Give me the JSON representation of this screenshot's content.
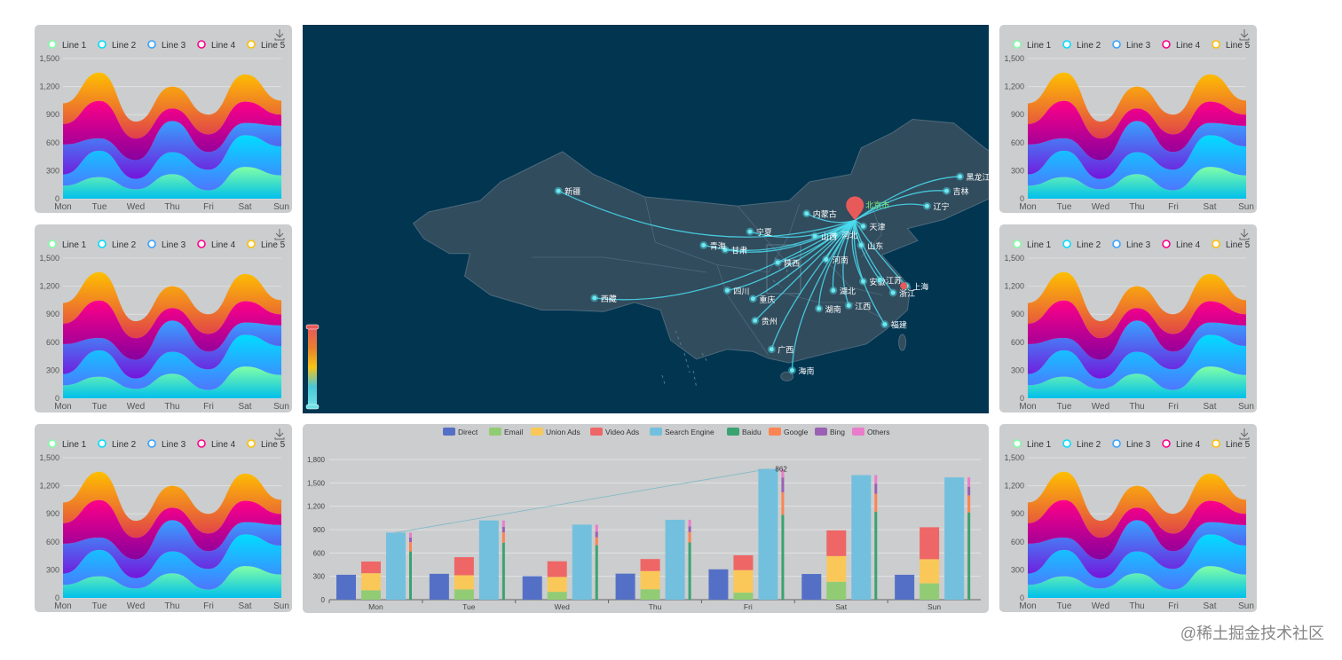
{
  "area_chart": {
    "legend": [
      "Line 1",
      "Line 2",
      "Line 3",
      "Line 4",
      "Line 5"
    ],
    "legend_colors": [
      "#80FFA5",
      "#00DDFF",
      "#37A2FF",
      "#FF0087",
      "#FFBF00"
    ],
    "categories": [
      "Mon",
      "Tue",
      "Wed",
      "Thu",
      "Fri",
      "Sat",
      "Sun"
    ],
    "y_ticks": [
      "0",
      "300",
      "600",
      "900",
      "1,200",
      "1,500"
    ],
    "ylim": [
      0,
      1500
    ]
  },
  "chart_data": [
    {
      "type": "area",
      "stacked": true,
      "title": "",
      "categories": [
        "Mon",
        "Tue",
        "Wed",
        "Thu",
        "Fri",
        "Sat",
        "Sun"
      ],
      "ylim": [
        0,
        1500
      ],
      "series": [
        {
          "name": "Line 1",
          "values": [
            140,
            232,
            101,
            264,
            90,
            340,
            250
          ]
        },
        {
          "name": "Line 2",
          "values": [
            120,
            282,
            111,
            234,
            220,
            340,
            310
          ]
        },
        {
          "name": "Line 3",
          "values": [
            320,
            132,
            201,
            334,
            190,
            130,
            220
          ]
        },
        {
          "name": "Line 4",
          "values": [
            220,
            402,
            231,
            134,
            190,
            230,
            120
          ]
        },
        {
          "name": "Line 5",
          "values": [
            220,
            302,
            181,
            234,
            210,
            290,
            150
          ]
        }
      ]
    },
    {
      "type": "area",
      "stacked": true,
      "title": "",
      "categories": [
        "Mon",
        "Tue",
        "Wed",
        "Thu",
        "Fri",
        "Sat",
        "Sun"
      ],
      "ylim": [
        0,
        1500
      ],
      "series": [
        {
          "name": "Line 1",
          "values": [
            140,
            232,
            101,
            264,
            90,
            340,
            250
          ]
        },
        {
          "name": "Line 2",
          "values": [
            120,
            282,
            111,
            234,
            220,
            340,
            310
          ]
        },
        {
          "name": "Line 3",
          "values": [
            320,
            132,
            201,
            334,
            190,
            130,
            220
          ]
        },
        {
          "name": "Line 4",
          "values": [
            220,
            402,
            231,
            134,
            190,
            230,
            120
          ]
        },
        {
          "name": "Line 5",
          "values": [
            220,
            302,
            181,
            234,
            210,
            290,
            150
          ]
        }
      ]
    },
    {
      "type": "area",
      "stacked": true,
      "title": "",
      "categories": [
        "Mon",
        "Tue",
        "Wed",
        "Thu",
        "Fri",
        "Sat",
        "Sun"
      ],
      "ylim": [
        0,
        1500
      ],
      "series": [
        {
          "name": "Line 1",
          "values": [
            140,
            232,
            101,
            264,
            90,
            340,
            250
          ]
        },
        {
          "name": "Line 2",
          "values": [
            120,
            282,
            111,
            234,
            220,
            340,
            310
          ]
        },
        {
          "name": "Line 3",
          "values": [
            320,
            132,
            201,
            334,
            190,
            130,
            220
          ]
        },
        {
          "name": "Line 4",
          "values": [
            220,
            402,
            231,
            134,
            190,
            230,
            120
          ]
        },
        {
          "name": "Line 5",
          "values": [
            220,
            302,
            181,
            234,
            210,
            290,
            150
          ]
        }
      ]
    },
    {
      "type": "area",
      "stacked": true,
      "title": "",
      "categories": [
        "Mon",
        "Tue",
        "Wed",
        "Thu",
        "Fri",
        "Sat",
        "Sun"
      ],
      "ylim": [
        0,
        1500
      ],
      "series": [
        {
          "name": "Line 1",
          "values": [
            140,
            232,
            101,
            264,
            90,
            340,
            250
          ]
        },
        {
          "name": "Line 2",
          "values": [
            120,
            282,
            111,
            234,
            220,
            340,
            310
          ]
        },
        {
          "name": "Line 3",
          "values": [
            320,
            132,
            201,
            334,
            190,
            130,
            220
          ]
        },
        {
          "name": "Line 4",
          "values": [
            220,
            402,
            231,
            134,
            190,
            230,
            120
          ]
        },
        {
          "name": "Line 5",
          "values": [
            220,
            302,
            181,
            234,
            210,
            290,
            150
          ]
        }
      ]
    },
    {
      "type": "area",
      "stacked": true,
      "title": "",
      "categories": [
        "Mon",
        "Tue",
        "Wed",
        "Thu",
        "Fri",
        "Sat",
        "Sun"
      ],
      "ylim": [
        0,
        1500
      ],
      "series": [
        {
          "name": "Line 1",
          "values": [
            140,
            232,
            101,
            264,
            90,
            340,
            250
          ]
        },
        {
          "name": "Line 2",
          "values": [
            120,
            282,
            111,
            234,
            220,
            340,
            310
          ]
        },
        {
          "name": "Line 3",
          "values": [
            320,
            132,
            201,
            334,
            190,
            130,
            220
          ]
        },
        {
          "name": "Line 4",
          "values": [
            220,
            402,
            231,
            134,
            190,
            230,
            120
          ]
        },
        {
          "name": "Line 5",
          "values": [
            220,
            302,
            181,
            234,
            210,
            290,
            150
          ]
        }
      ]
    },
    {
      "type": "area",
      "stacked": true,
      "title": "",
      "categories": [
        "Mon",
        "Tue",
        "Wed",
        "Thu",
        "Fri",
        "Sat",
        "Sun"
      ],
      "ylim": [
        0,
        1500
      ],
      "series": [
        {
          "name": "Line 1",
          "values": [
            140,
            232,
            101,
            264,
            90,
            340,
            250
          ]
        },
        {
          "name": "Line 2",
          "values": [
            120,
            282,
            111,
            234,
            220,
            340,
            310
          ]
        },
        {
          "name": "Line 3",
          "values": [
            320,
            132,
            201,
            334,
            190,
            130,
            220
          ]
        },
        {
          "name": "Line 4",
          "values": [
            220,
            402,
            231,
            134,
            190,
            230,
            120
          ]
        },
        {
          "name": "Line 5",
          "values": [
            220,
            302,
            181,
            234,
            210,
            290,
            150
          ]
        }
      ]
    },
    {
      "type": "bar",
      "title": "",
      "categories": [
        "Mon",
        "Tue",
        "Wed",
        "Thu",
        "Fri",
        "Sat",
        "Sun"
      ],
      "ylim": [
        0,
        1800
      ],
      "y_ticks": [
        "0",
        "300",
        "600",
        "900",
        "1,200",
        "1,500",
        "1,800"
      ],
      "legend": [
        "Direct",
        "Email",
        "Union Ads",
        "Video Ads",
        "Search Engine",
        "Baidu",
        "Google",
        "Bing",
        "Others"
      ],
      "colors": {
        "Direct": "#5470c6",
        "Email": "#91cc75",
        "Union Ads": "#fac858",
        "Video Ads": "#ee6666",
        "Search Engine": "#73c0de",
        "Baidu": "#3ba272",
        "Google": "#fc8452",
        "Bing": "#9a60b4",
        "Others": "#ea7ccc"
      },
      "series": [
        {
          "name": "Direct",
          "values": [
            320,
            332,
            301,
            334,
            390,
            330,
            320
          ]
        },
        {
          "name": "Email",
          "values": [
            120,
            132,
            101,
            134,
            90,
            230,
            210
          ]
        },
        {
          "name": "Union Ads",
          "values": [
            220,
            182,
            191,
            234,
            290,
            330,
            310
          ]
        },
        {
          "name": "Video Ads",
          "values": [
            150,
            232,
            201,
            154,
            190,
            330,
            410
          ]
        },
        {
          "name": "Search Engine",
          "values": [
            862,
            1018,
            964,
            1026,
            1679,
            1600,
            1570
          ]
        },
        {
          "name": "Baidu",
          "values": [
            620,
            732,
            701,
            734,
            1090,
            1130,
            1120
          ]
        },
        {
          "name": "Google",
          "values": [
            120,
            132,
            101,
            134,
            290,
            230,
            220
          ]
        },
        {
          "name": "Bing",
          "values": [
            60,
            72,
            71,
            74,
            190,
            130,
            110
          ]
        },
        {
          "name": "Others",
          "values": [
            62,
            82,
            91,
            84,
            109,
            110,
            120
          ]
        }
      ],
      "mark_line": {
        "label": "862",
        "from": "Mon",
        "to": "Fri"
      }
    }
  ],
  "map": {
    "provinces": [
      {
        "name": "北京市",
        "label": "北京市",
        "lon": 116.4,
        "lat": 39.9
      },
      {
        "name": "新疆",
        "label": "新疆",
        "lon": 87.6,
        "lat": 43.8
      },
      {
        "name": "西藏",
        "label": "西藏",
        "lon": 91.1,
        "lat": 29.6
      },
      {
        "name": "内蒙古",
        "label": "内蒙古",
        "lon": 111.7,
        "lat": 40.8
      },
      {
        "name": "黑龙江",
        "label": "黑龙江",
        "lon": 126.6,
        "lat": 45.7
      },
      {
        "name": "吉林",
        "label": "吉林",
        "lon": 125.3,
        "lat": 43.8
      },
      {
        "name": "辽宁",
        "label": "辽宁",
        "lon": 123.4,
        "lat": 41.8
      },
      {
        "name": "天津",
        "label": "天津",
        "lon": 117.2,
        "lat": 39.1
      },
      {
        "name": "河北",
        "label": "河北",
        "lon": 114.5,
        "lat": 38.0
      },
      {
        "name": "山西",
        "label": "山西",
        "lon": 112.5,
        "lat": 37.8
      },
      {
        "name": "宁夏",
        "label": "宁夏",
        "lon": 106.2,
        "lat": 38.4
      },
      {
        "name": "甘肃",
        "label": "甘肃",
        "lon": 103.8,
        "lat": 36.0
      },
      {
        "name": "青海",
        "label": "青海",
        "lon": 101.7,
        "lat": 36.6
      },
      {
        "name": "山东",
        "label": "山东",
        "lon": 117.0,
        "lat": 36.6
      },
      {
        "name": "陕西",
        "label": "陕西",
        "lon": 108.9,
        "lat": 34.3
      },
      {
        "name": "河南",
        "label": "河南",
        "lon": 113.6,
        "lat": 34.7
      },
      {
        "name": "安徽",
        "label": "安徽",
        "lon": 117.2,
        "lat": 31.8
      },
      {
        "name": "江苏",
        "label": "江苏",
        "lon": 118.8,
        "lat": 32.0
      },
      {
        "name": "上海",
        "label": "上海",
        "lon": 121.4,
        "lat": 31.2
      },
      {
        "name": "四川",
        "label": "四川",
        "lon": 104.0,
        "lat": 30.6
      },
      {
        "name": "重庆",
        "label": "重庆",
        "lon": 106.5,
        "lat": 29.5
      },
      {
        "name": "湖北",
        "label": "湖北",
        "lon": 114.3,
        "lat": 30.6
      },
      {
        "name": "浙江",
        "label": "浙江",
        "lon": 120.1,
        "lat": 30.3
      },
      {
        "name": "湖南",
        "label": "湖南",
        "lon": 112.9,
        "lat": 28.2
      },
      {
        "name": "江西",
        "label": "江西",
        "lon": 115.8,
        "lat": 28.6
      },
      {
        "name": "贵州",
        "label": "贵州",
        "lon": 106.7,
        "lat": 26.6
      },
      {
        "name": "福建",
        "label": "福建",
        "lon": 119.3,
        "lat": 26.1
      },
      {
        "name": "广西",
        "label": "广西",
        "lon": 108.3,
        "lat": 22.8
      },
      {
        "name": "海南",
        "label": "海南",
        "lon": 110.3,
        "lat": 20.0
      }
    ],
    "visual_map_colors": [
      "#e85a5a",
      "#e87e2e",
      "#f5c518",
      "#4ac7d6",
      "#6fe0e6"
    ]
  },
  "watermark": "@稀土掘金技术社区"
}
